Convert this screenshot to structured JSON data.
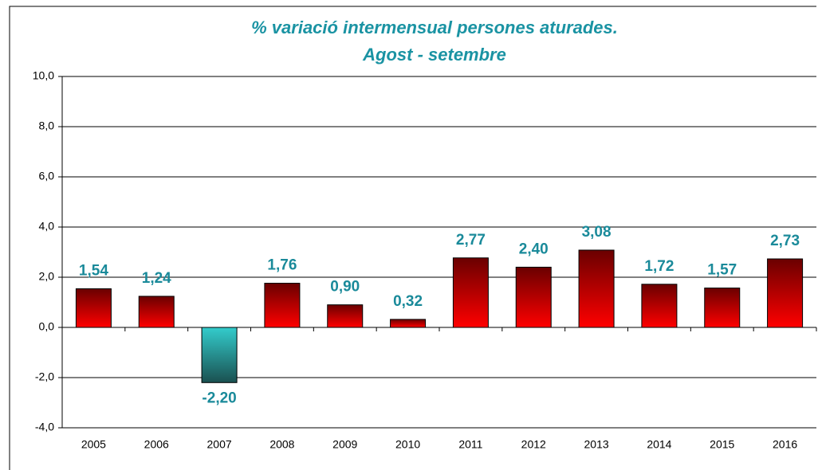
{
  "chart_data": {
    "type": "bar",
    "title": "% variació intermensual persones aturades.",
    "subtitle": "Agost - setembre",
    "categories": [
      "2005",
      "2006",
      "2007",
      "2008",
      "2009",
      "2010",
      "2011",
      "2012",
      "2013",
      "2014",
      "2015",
      "2016"
    ],
    "values": [
      1.54,
      1.24,
      -2.2,
      1.76,
      0.9,
      0.32,
      2.77,
      2.4,
      3.08,
      1.72,
      1.57,
      2.73
    ],
    "value_labels": [
      "1,54",
      "1,24",
      "-2,20",
      "1,76",
      "0,90",
      "0,32",
      "2,77",
      "2,40",
      "3,08",
      "1,72",
      "1,57",
      "2,73"
    ],
    "color": "#ff0000",
    "negative_color": "#33cccc",
    "ylim": [
      -4,
      10
    ],
    "yticks": [
      {
        "value": -4,
        "label": "-4,0"
      },
      {
        "value": -2,
        "label": "-2,0"
      },
      {
        "value": 0,
        "label": "0,0"
      },
      {
        "value": 2,
        "label": "2,0"
      },
      {
        "value": 4,
        "label": "4,0"
      },
      {
        "value": 6,
        "label": "6,0"
      },
      {
        "value": 8,
        "label": "8,0"
      },
      {
        "value": 10,
        "label": "10,0"
      }
    ],
    "grid": true
  }
}
